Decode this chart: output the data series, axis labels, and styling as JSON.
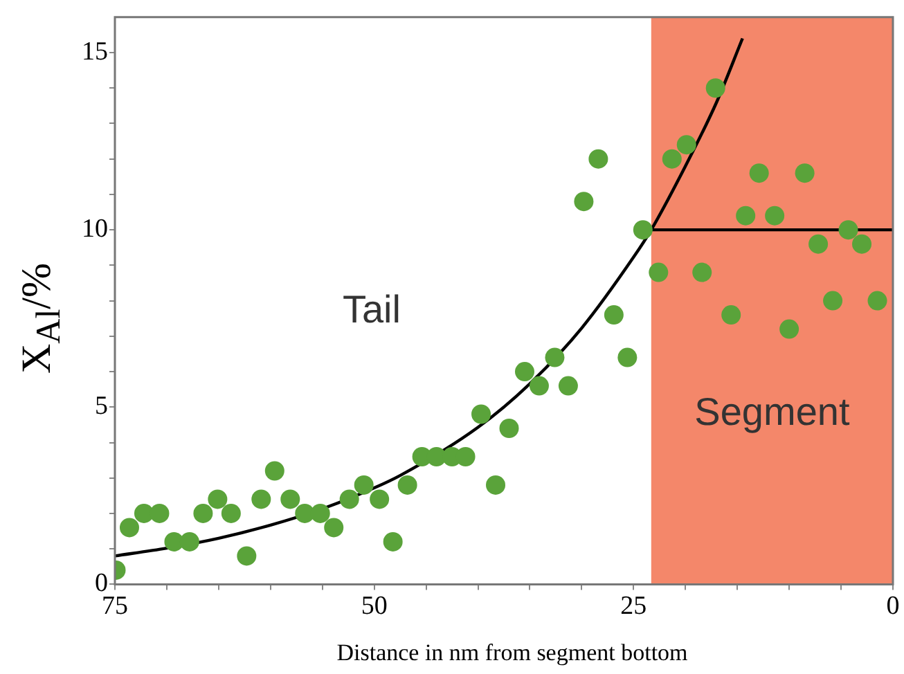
{
  "chart_data": {
    "type": "scatter",
    "ylabel": "X$_{Al}$/%",
    "xlabel": "Distance in nm from segment bottom",
    "xlim": [
      75,
      0
    ],
    "ylim": [
      0,
      16
    ],
    "xticks": [
      75,
      {
        "value": 70,
        "label": null
      },
      {
        "value": 65,
        "label": null
      },
      {
        "value": 60,
        "label": null
      },
      {
        "value": 55,
        "label": null
      },
      50,
      {
        "value": 45,
        "label": null
      },
      {
        "value": 40,
        "label": null
      },
      {
        "value": 35,
        "label": null
      },
      {
        "value": 30,
        "label": null
      },
      25,
      {
        "value": 20,
        "label": null
      },
      {
        "value": 15,
        "label": null
      },
      {
        "value": 10,
        "label": null
      },
      {
        "value": 5,
        "label": null
      },
      0
    ],
    "yticks": [
      0,
      {
        "value": 1,
        "label": null
      },
      {
        "value": 2,
        "label": null
      },
      {
        "value": 3,
        "label": null
      },
      {
        "value": 4,
        "label": null
      },
      5,
      {
        "value": 6,
        "label": null
      },
      {
        "value": 7,
        "label": null
      },
      {
        "value": 8,
        "label": null
      },
      {
        "value": 9,
        "label": null
      },
      10,
      {
        "value": 11,
        "label": null
      },
      {
        "value": 12,
        "label": null
      },
      {
        "value": 13,
        "label": null
      },
      {
        "value": 14,
        "label": null
      },
      15
    ],
    "grid": false,
    "legend": false,
    "marker": "circle",
    "bands": [
      {
        "axis": "x",
        "from": 23.3,
        "to": 0,
        "label": "Segment",
        "color": "#f4876a"
      }
    ],
    "annotations": [
      "Tail"
    ],
    "series": [
      {
        "color": "#5aa33a",
        "x": [
          74.9,
          73.6,
          72.2,
          70.7,
          69.3,
          67.8,
          66.5,
          65.1,
          63.8,
          62.3,
          60.9,
          59.6,
          58.1,
          56.7,
          55.2,
          53.9,
          52.4,
          51.0,
          49.5,
          48.2,
          46.8,
          45.4,
          44.0,
          42.5,
          41.2,
          39.7,
          38.3,
          37.0,
          35.5,
          34.1,
          32.6,
          31.3,
          29.8,
          28.4,
          26.9,
          25.6,
          24.1,
          22.6,
          21.3,
          19.9,
          18.4,
          17.1,
          15.6,
          14.2,
          12.9,
          11.4,
          10.0,
          8.5,
          7.2,
          5.8,
          4.3,
          3.0,
          1.5
        ],
        "values": [
          0.4,
          1.6,
          2.0,
          2.0,
          1.2,
          1.2,
          2.0,
          2.4,
          2.0,
          0.8,
          2.4,
          3.2,
          2.4,
          2.0,
          2.0,
          1.6,
          2.4,
          2.8,
          2.4,
          1.2,
          2.8,
          3.6,
          3.6,
          3.6,
          3.6,
          4.8,
          2.8,
          4.4,
          6.0,
          5.6,
          6.4,
          5.6,
          10.8,
          12.0,
          7.6,
          6.4,
          10.0,
          8.8,
          12.0,
          12.4,
          8.8,
          14.0,
          7.6,
          10.4,
          11.6,
          10.4,
          7.2,
          11.6,
          9.6,
          8.0,
          10.0,
          9.6,
          8.0
        ]
      },
      {
        "type": "line",
        "color": "#000000",
        "marker": "none",
        "x": [
          75,
          70,
          65,
          60,
          55,
          50,
          47.5,
          40,
          35,
          30,
          25,
          23.3,
          20,
          17,
          14.5
        ],
        "values": [
          0.8,
          1.02,
          1.3,
          1.67,
          2.13,
          2.72,
          3.07,
          4.43,
          5.66,
          7.23,
          9.23,
          10,
          11.8,
          13.6,
          15.4
        ]
      },
      {
        "type": "line",
        "color": "#000000",
        "marker": "none",
        "x": [
          23.3,
          0
        ],
        "values": [
          10,
          10
        ]
      }
    ]
  }
}
